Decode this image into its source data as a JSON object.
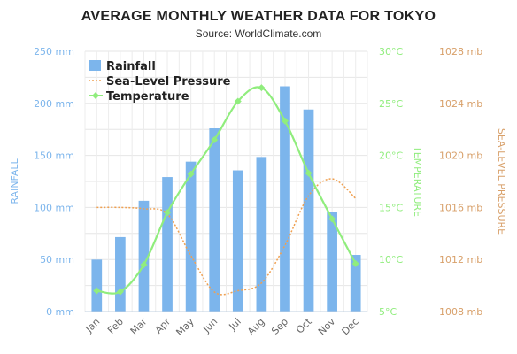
{
  "chart_data": {
    "type": "bar",
    "title": "AVERAGE MONTHLY WEATHER DATA FOR TOKYO",
    "subtitle": "Source: WorldClimate.com",
    "categories": [
      "Jan",
      "Feb",
      "Mar",
      "Apr",
      "May",
      "Jun",
      "Jul",
      "Aug",
      "Sep",
      "Oct",
      "Nov",
      "Dec"
    ],
    "series": [
      {
        "name": "Rainfall",
        "type": "bar",
        "axis": "rainfall",
        "color": "#7cb5ec",
        "values": [
          49.9,
          71.5,
          106.4,
          129.2,
          144.0,
          176.0,
          135.6,
          148.5,
          216.4,
          194.1,
          95.6,
          54.4
        ]
      },
      {
        "name": "Sea-Level Pressure",
        "type": "line",
        "style": "dotted",
        "axis": "pressure",
        "color": "#f0a050",
        "values": [
          1016,
          1016,
          1015.9,
          1015.5,
          1012.3,
          1009.5,
          1009.6,
          1010.2,
          1013.1,
          1016.9,
          1018.2,
          1016.7
        ]
      },
      {
        "name": "Temperature",
        "type": "line",
        "axis": "temperature",
        "color": "#90ed7d",
        "values": [
          7.0,
          6.9,
          9.5,
          14.5,
          18.2,
          21.5,
          25.2,
          26.5,
          23.3,
          18.3,
          13.9,
          9.6
        ]
      }
    ],
    "axes": {
      "rainfall": {
        "title": "RAINFALL",
        "position": "left",
        "min": 0,
        "max": 250,
        "step": 50,
        "tick_labels": [
          "0 mm",
          "50 mm",
          "100 mm",
          "150 mm",
          "200 mm",
          "250 mm"
        ],
        "color": "#7cb5ec"
      },
      "temperature": {
        "title": "TEMPERATURE",
        "position": "right",
        "min": 5,
        "max": 30,
        "step": 5,
        "tick_labels": [
          "5°C",
          "10°C",
          "15°C",
          "20°C",
          "25°C",
          "30°C"
        ],
        "color": "#90ed7d"
      },
      "pressure": {
        "title": "SEA-LEVEL PRESSURE",
        "position": "right",
        "min": 1008,
        "max": 1028,
        "step": 4,
        "tick_labels": [
          "1008 mb",
          "1012 mb",
          "1016 mb",
          "1020 mb",
          "1024 mb",
          "1028 mb"
        ],
        "color": "#d8a06a"
      }
    },
    "grid": true,
    "legend": "top-left"
  }
}
